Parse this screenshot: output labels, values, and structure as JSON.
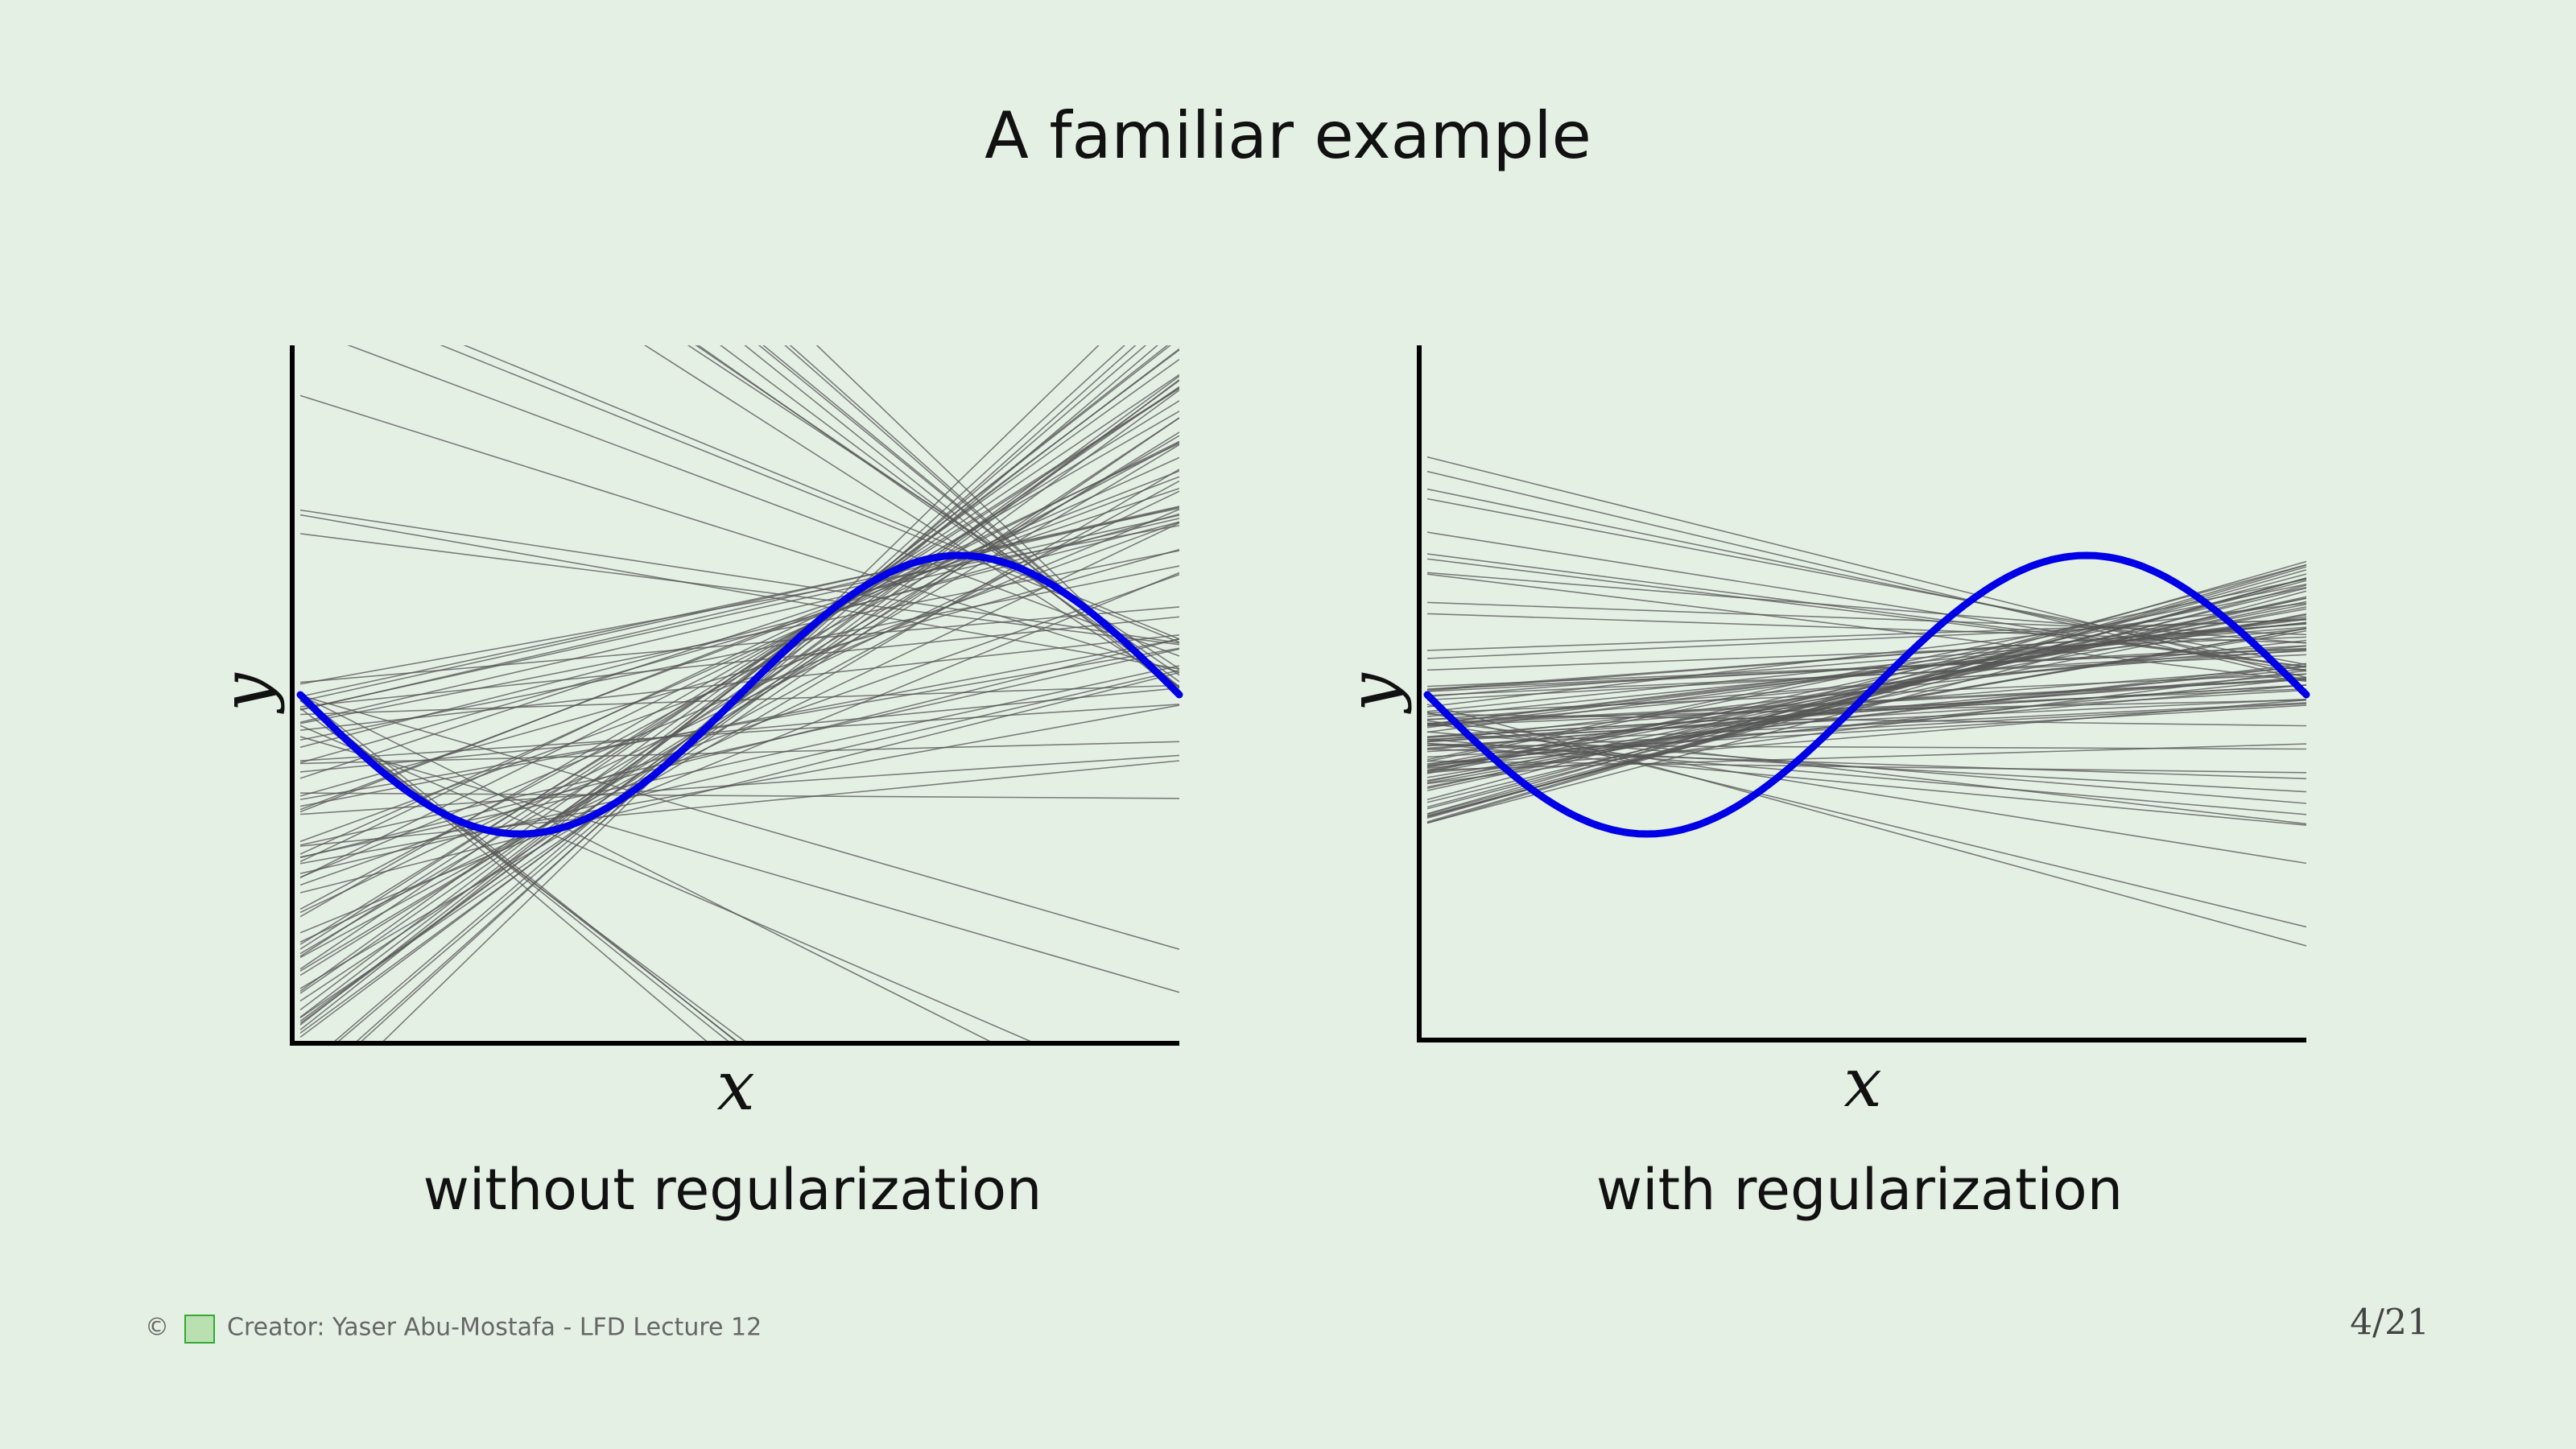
{
  "title": "A familiar example",
  "panels": [
    {
      "x_label": "x",
      "y_label": "y",
      "caption": "without regularization"
    },
    {
      "x_label": "x",
      "y_label": "y",
      "caption": "with regularization"
    }
  ],
  "footer": {
    "symbol": "©",
    "credit": "Creator: Yaser Abu-Mostafa - LFD Lecture 12",
    "page": "4/21"
  }
}
